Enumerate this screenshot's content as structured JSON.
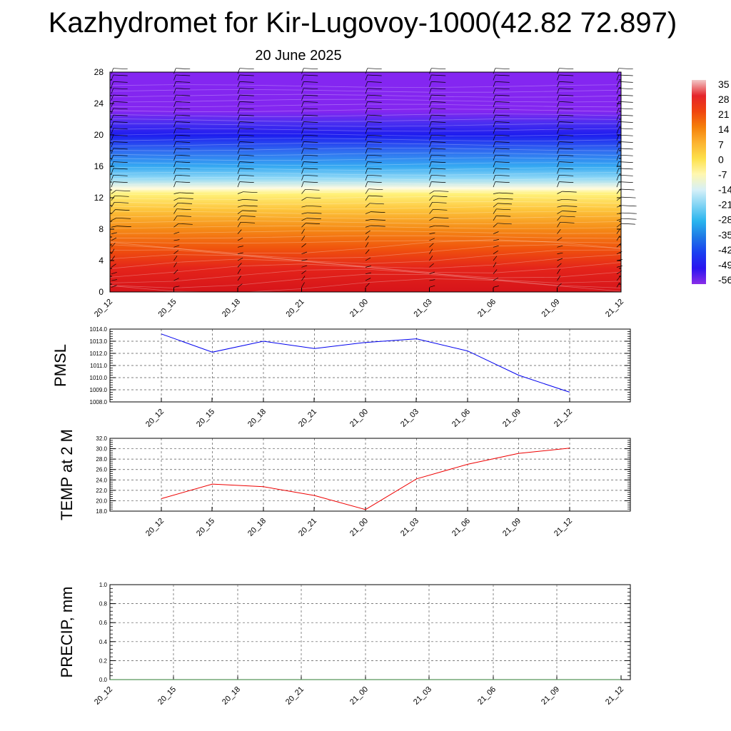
{
  "title": "Kazhydromet for Kir-Lugovoy-1000(42.82 72.897)",
  "subtitle": "20 June 2025",
  "chart_data": [
    {
      "type": "heatmap",
      "y_ticks": [
        0,
        4,
        8,
        12,
        16,
        20,
        24,
        28
      ],
      "ylim": [
        0,
        28
      ],
      "x_ticks": [
        "20_12",
        "20_15",
        "20_18",
        "20_21",
        "21_00",
        "21_03",
        "21_06",
        "21_09",
        "21_12"
      ],
      "colorbar": {
        "labels": [
          "35",
          "28",
          "21",
          "14",
          "7",
          "0",
          "-7",
          "-14",
          "-21",
          "-28",
          "-35",
          "-42",
          "-49",
          "-56"
        ],
        "colors": [
          "#f2c8c8",
          "#e5242a",
          "#f0450e",
          "#f5800a",
          "#fcb330",
          "#fde04a",
          "#fff7b0",
          "#d6f0f8",
          "#7fd3f4",
          "#29b4ee",
          "#1f79e6",
          "#1a3ff0",
          "#2a14f0",
          "#8a2ee8"
        ]
      },
      "layers_color_by_level": [
        {
          "level": 28,
          "color": "#8426f1"
        },
        {
          "level": 23,
          "color": "#8326f0"
        },
        {
          "level": 21.5,
          "color": "#4a2ef0"
        },
        {
          "level": 20,
          "color": "#1d1cef"
        },
        {
          "level": 18,
          "color": "#2f6af0"
        },
        {
          "level": 16,
          "color": "#35a9f2"
        },
        {
          "level": 14.5,
          "color": "#8fd8f6"
        },
        {
          "level": 13.2,
          "color": "#fffbe0"
        },
        {
          "level": 12.5,
          "color": "#fff27a"
        },
        {
          "level": 10.5,
          "color": "#fdc53c"
        },
        {
          "level": 8,
          "color": "#f58a16"
        },
        {
          "level": 5.5,
          "color": "#f0530d"
        },
        {
          "level": 3,
          "color": "#e4241a"
        },
        {
          "level": 0,
          "color": "#d6141a"
        }
      ]
    },
    {
      "type": "line",
      "ylabel": "PMSL",
      "categories": [
        "20_12",
        "20_15",
        "20_18",
        "20_21",
        "21_00",
        "21_03",
        "21_06",
        "21_09",
        "21_12"
      ],
      "y_ticks": [
        "1008.0",
        "1009.0",
        "1010.0",
        "1011.0",
        "1012.0",
        "1013.0",
        "1014.0"
      ],
      "ylim": [
        1008,
        1014
      ],
      "values": [
        1013.6,
        1012.1,
        1013.0,
        1012.4,
        1012.9,
        1013.2,
        1012.2,
        1010.2,
        1008.8
      ],
      "color": "#0000ee",
      "grid": true
    },
    {
      "type": "line",
      "ylabel": "TEMP at 2 M",
      "categories": [
        "20_12",
        "20_15",
        "20_18",
        "20_21",
        "21_00",
        "21_03",
        "21_06",
        "21_09",
        "21_12"
      ],
      "y_ticks": [
        "18.0",
        "20.0",
        "22.0",
        "24.0",
        "26.0",
        "28.0",
        "30.0",
        "32.0"
      ],
      "ylim": [
        18,
        32
      ],
      "values": [
        20.4,
        23.2,
        22.7,
        21.0,
        18.3,
        24.2,
        27.0,
        29.1,
        30.1
      ],
      "color": "#ee0000",
      "grid": true
    },
    {
      "type": "line",
      "ylabel": "PRECIP, mm",
      "categories": [
        "20_12",
        "20_15",
        "20_18",
        "20_21",
        "21_00",
        "21_03",
        "21_06",
        "21_09",
        "21_12"
      ],
      "y_ticks": [
        "0.0",
        "0.2",
        "0.4",
        "0.6",
        "0.8",
        "1.0"
      ],
      "ylim": [
        0,
        1
      ],
      "values": [
        0,
        0,
        0,
        0,
        0,
        0,
        0,
        0,
        0
      ],
      "color": "#2e7d32",
      "grid": true
    }
  ]
}
